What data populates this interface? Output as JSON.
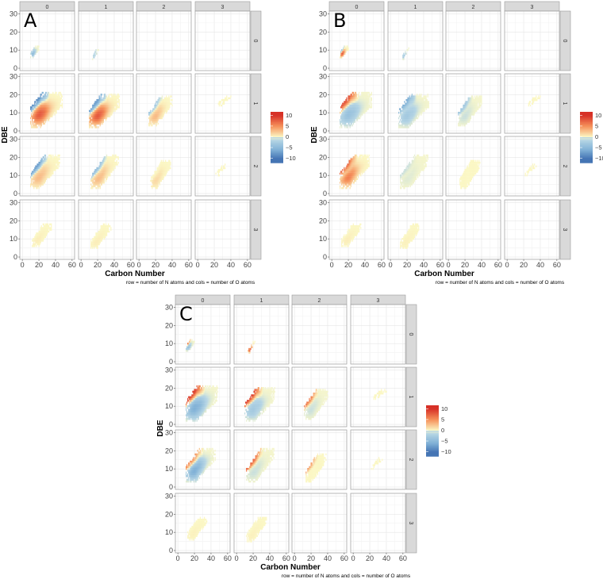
{
  "chart_data": {
    "type": "heatmap",
    "xlabel": "Carbon Number",
    "ylabel": "DBE",
    "caption": "row = number of N atoms and cols = number of O atoms",
    "x_ticks": [
      0,
      20,
      40,
      60
    ],
    "y_ticks": [
      0,
      10,
      20,
      30
    ],
    "xlim": [
      -3,
      63
    ],
    "ylim": [
      -1.3,
      31.5
    ],
    "grid": true,
    "col_labels": [
      "0",
      "1",
      "2",
      "3"
    ],
    "row_labels": [
      "0",
      "1",
      "2",
      "3"
    ],
    "legend": {
      "ticks": [
        10,
        5,
        0,
        -5,
        -10
      ],
      "range": [
        -12,
        11.6
      ],
      "placement": "right"
    },
    "colors": {
      "high": "#d73027",
      "mid_high": "#f46d43",
      "zero": "#fbf7c4",
      "mid_low": "#91bfdb",
      "low": "#4575b4"
    },
    "panels": [
      {
        "label": "A",
        "facets": [
          {
            "n": 0,
            "o": 0,
            "c": [
              10,
              20
            ],
            "dbe": [
              6,
              12
            ],
            "width": 2,
            "core": -5,
            "edge": -2
          },
          {
            "n": 0,
            "o": 1,
            "c": [
              14,
              22
            ],
            "dbe": [
              5,
              11
            ],
            "width": 1,
            "core": -2,
            "edge": -3
          },
          null,
          null,
          {
            "n": 1,
            "o": 0,
            "c": [
              10,
              48
            ],
            "dbe": [
              2,
              21
            ],
            "width": 8,
            "core": 8,
            "edge": -8
          },
          {
            "n": 1,
            "o": 1,
            "c": [
              10,
              46
            ],
            "dbe": [
              2,
              20
            ],
            "width": 7,
            "core": 8,
            "edge": -7
          },
          {
            "n": 1,
            "o": 2,
            "c": [
              12,
              40
            ],
            "dbe": [
              3,
              19
            ],
            "width": 5,
            "core": 3,
            "edge": -3
          },
          {
            "n": 1,
            "o": 3,
            "c": [
              24,
              40
            ],
            "dbe": [
              14,
              19
            ],
            "width": 1,
            "core": 0,
            "edge": 0
          },
          {
            "n": 2,
            "o": 0,
            "c": [
              10,
              45
            ],
            "dbe": [
              3,
              21
            ],
            "width": 6,
            "core": 3,
            "edge": -7
          },
          {
            "n": 2,
            "o": 1,
            "c": [
              12,
              45
            ],
            "dbe": [
              3,
              21
            ],
            "width": 5,
            "core": 3,
            "edge": -4
          },
          {
            "n": 2,
            "o": 2,
            "c": [
              14,
              38
            ],
            "dbe": [
              3,
              18
            ],
            "width": 4,
            "core": 1.5,
            "edge": 0
          },
          {
            "n": 2,
            "o": 3,
            "c": [
              22,
              35
            ],
            "dbe": [
              10,
              16
            ],
            "width": 1,
            "core": 0,
            "edge": 0
          },
          {
            "n": 3,
            "o": 0,
            "c": [
              12,
              35
            ],
            "dbe": [
              6,
              18
            ],
            "width": 3,
            "core": 0.5,
            "edge": 0
          },
          {
            "n": 3,
            "o": 1,
            "c": [
              12,
              36
            ],
            "dbe": [
              5,
              18
            ],
            "width": 3,
            "core": 0.5,
            "edge": 0
          },
          null,
          null
        ]
      },
      {
        "label": "B",
        "facets": [
          {
            "n": 0,
            "o": 0,
            "c": [
              10,
              20
            ],
            "dbe": [
              6,
              12
            ],
            "width": 2,
            "core": 8,
            "edge": -3
          },
          {
            "n": 0,
            "o": 1,
            "c": [
              14,
              22
            ],
            "dbe": [
              5,
              11
            ],
            "width": 1,
            "core": -3,
            "edge": -2
          },
          null,
          null,
          {
            "n": 1,
            "o": 0,
            "c": [
              10,
              48
            ],
            "dbe": [
              2,
              21
            ],
            "width": 8,
            "core": -4,
            "edge": 8
          },
          {
            "n": 1,
            "o": 1,
            "c": [
              10,
              46
            ],
            "dbe": [
              2,
              20
            ],
            "width": 7,
            "core": -3,
            "edge": -6
          },
          {
            "n": 1,
            "o": 2,
            "c": [
              12,
              40
            ],
            "dbe": [
              3,
              19
            ],
            "width": 5,
            "core": -1,
            "edge": -3
          },
          {
            "n": 1,
            "o": 3,
            "c": [
              24,
              40
            ],
            "dbe": [
              14,
              19
            ],
            "width": 1,
            "core": 0,
            "edge": 0
          },
          {
            "n": 2,
            "o": 0,
            "c": [
              10,
              45
            ],
            "dbe": [
              3,
              21
            ],
            "width": 6,
            "core": 6,
            "edge": 7
          },
          {
            "n": 2,
            "o": 1,
            "c": [
              12,
              45
            ],
            "dbe": [
              3,
              21
            ],
            "width": 5,
            "core": -0.5,
            "edge": -1
          },
          {
            "n": 2,
            "o": 2,
            "c": [
              14,
              38
            ],
            "dbe": [
              3,
              18
            ],
            "width": 4,
            "core": 0,
            "edge": 0
          },
          {
            "n": 2,
            "o": 3,
            "c": [
              22,
              35
            ],
            "dbe": [
              10,
              16
            ],
            "width": 1,
            "core": 0,
            "edge": 0
          },
          {
            "n": 3,
            "o": 0,
            "c": [
              12,
              35
            ],
            "dbe": [
              6,
              18
            ],
            "width": 3,
            "core": 0.5,
            "edge": 0
          },
          {
            "n": 3,
            "o": 1,
            "c": [
              12,
              36
            ],
            "dbe": [
              5,
              18
            ],
            "width": 3,
            "core": 0.3,
            "edge": 0
          },
          null,
          null
        ]
      },
      {
        "label": "C",
        "facets": [
          {
            "n": 0,
            "o": 0,
            "c": [
              10,
              20
            ],
            "dbe": [
              6,
              12
            ],
            "width": 2,
            "core": -4,
            "edge": 6
          },
          {
            "n": 0,
            "o": 1,
            "c": [
              14,
              22
            ],
            "dbe": [
              5,
              11
            ],
            "width": 1,
            "core": 8,
            "edge": 7
          },
          null,
          null,
          {
            "n": 1,
            "o": 0,
            "c": [
              10,
              48
            ],
            "dbe": [
              2,
              21
            ],
            "width": 8,
            "core": -6,
            "edge": 9
          },
          {
            "n": 1,
            "o": 1,
            "c": [
              10,
              46
            ],
            "dbe": [
              2,
              20
            ],
            "width": 7,
            "core": -3,
            "edge": 9
          },
          {
            "n": 1,
            "o": 2,
            "c": [
              12,
              40
            ],
            "dbe": [
              3,
              19
            ],
            "width": 5,
            "core": -1,
            "edge": 6
          },
          {
            "n": 1,
            "o": 3,
            "c": [
              24,
              40
            ],
            "dbe": [
              14,
              19
            ],
            "width": 1,
            "core": 0,
            "edge": 0
          },
          {
            "n": 2,
            "o": 0,
            "c": [
              10,
              45
            ],
            "dbe": [
              3,
              21
            ],
            "width": 6,
            "core": -6,
            "edge": 5
          },
          {
            "n": 2,
            "o": 1,
            "c": [
              12,
              45
            ],
            "dbe": [
              3,
              21
            ],
            "width": 5,
            "core": -1,
            "edge": 7
          },
          {
            "n": 2,
            "o": 2,
            "c": [
              14,
              38
            ],
            "dbe": [
              3,
              18
            ],
            "width": 4,
            "core": 0,
            "edge": 4
          },
          {
            "n": 2,
            "o": 3,
            "c": [
              22,
              35
            ],
            "dbe": [
              10,
              16
            ],
            "width": 1,
            "core": 0,
            "edge": 0
          },
          {
            "n": 3,
            "o": 0,
            "c": [
              12,
              35
            ],
            "dbe": [
              6,
              18
            ],
            "width": 3,
            "core": 0.3,
            "edge": 0
          },
          {
            "n": 3,
            "o": 1,
            "c": [
              12,
              36
            ],
            "dbe": [
              5,
              18
            ],
            "width": 3,
            "core": 0.3,
            "edge": 0
          },
          null,
          null
        ]
      }
    ]
  }
}
